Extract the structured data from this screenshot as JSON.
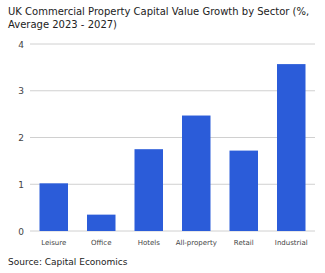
{
  "chart_data": {
    "type": "bar",
    "title": "UK Commercial Property Capital Value Growth by Sector (%,\nAverage 2023 - 2027)",
    "categories": [
      "Leisure",
      "Office",
      "Hotels",
      "All-property",
      "Retail",
      "Industrial"
    ],
    "values": [
      1.02,
      0.35,
      1.75,
      2.47,
      1.72,
      3.57
    ],
    "color": "#2b5cd9",
    "ylim": [
      0,
      4
    ],
    "yticks": [
      0,
      1,
      2,
      3,
      4
    ],
    "grid": true,
    "annotations": [
      "Source: Capital Economics"
    ]
  }
}
